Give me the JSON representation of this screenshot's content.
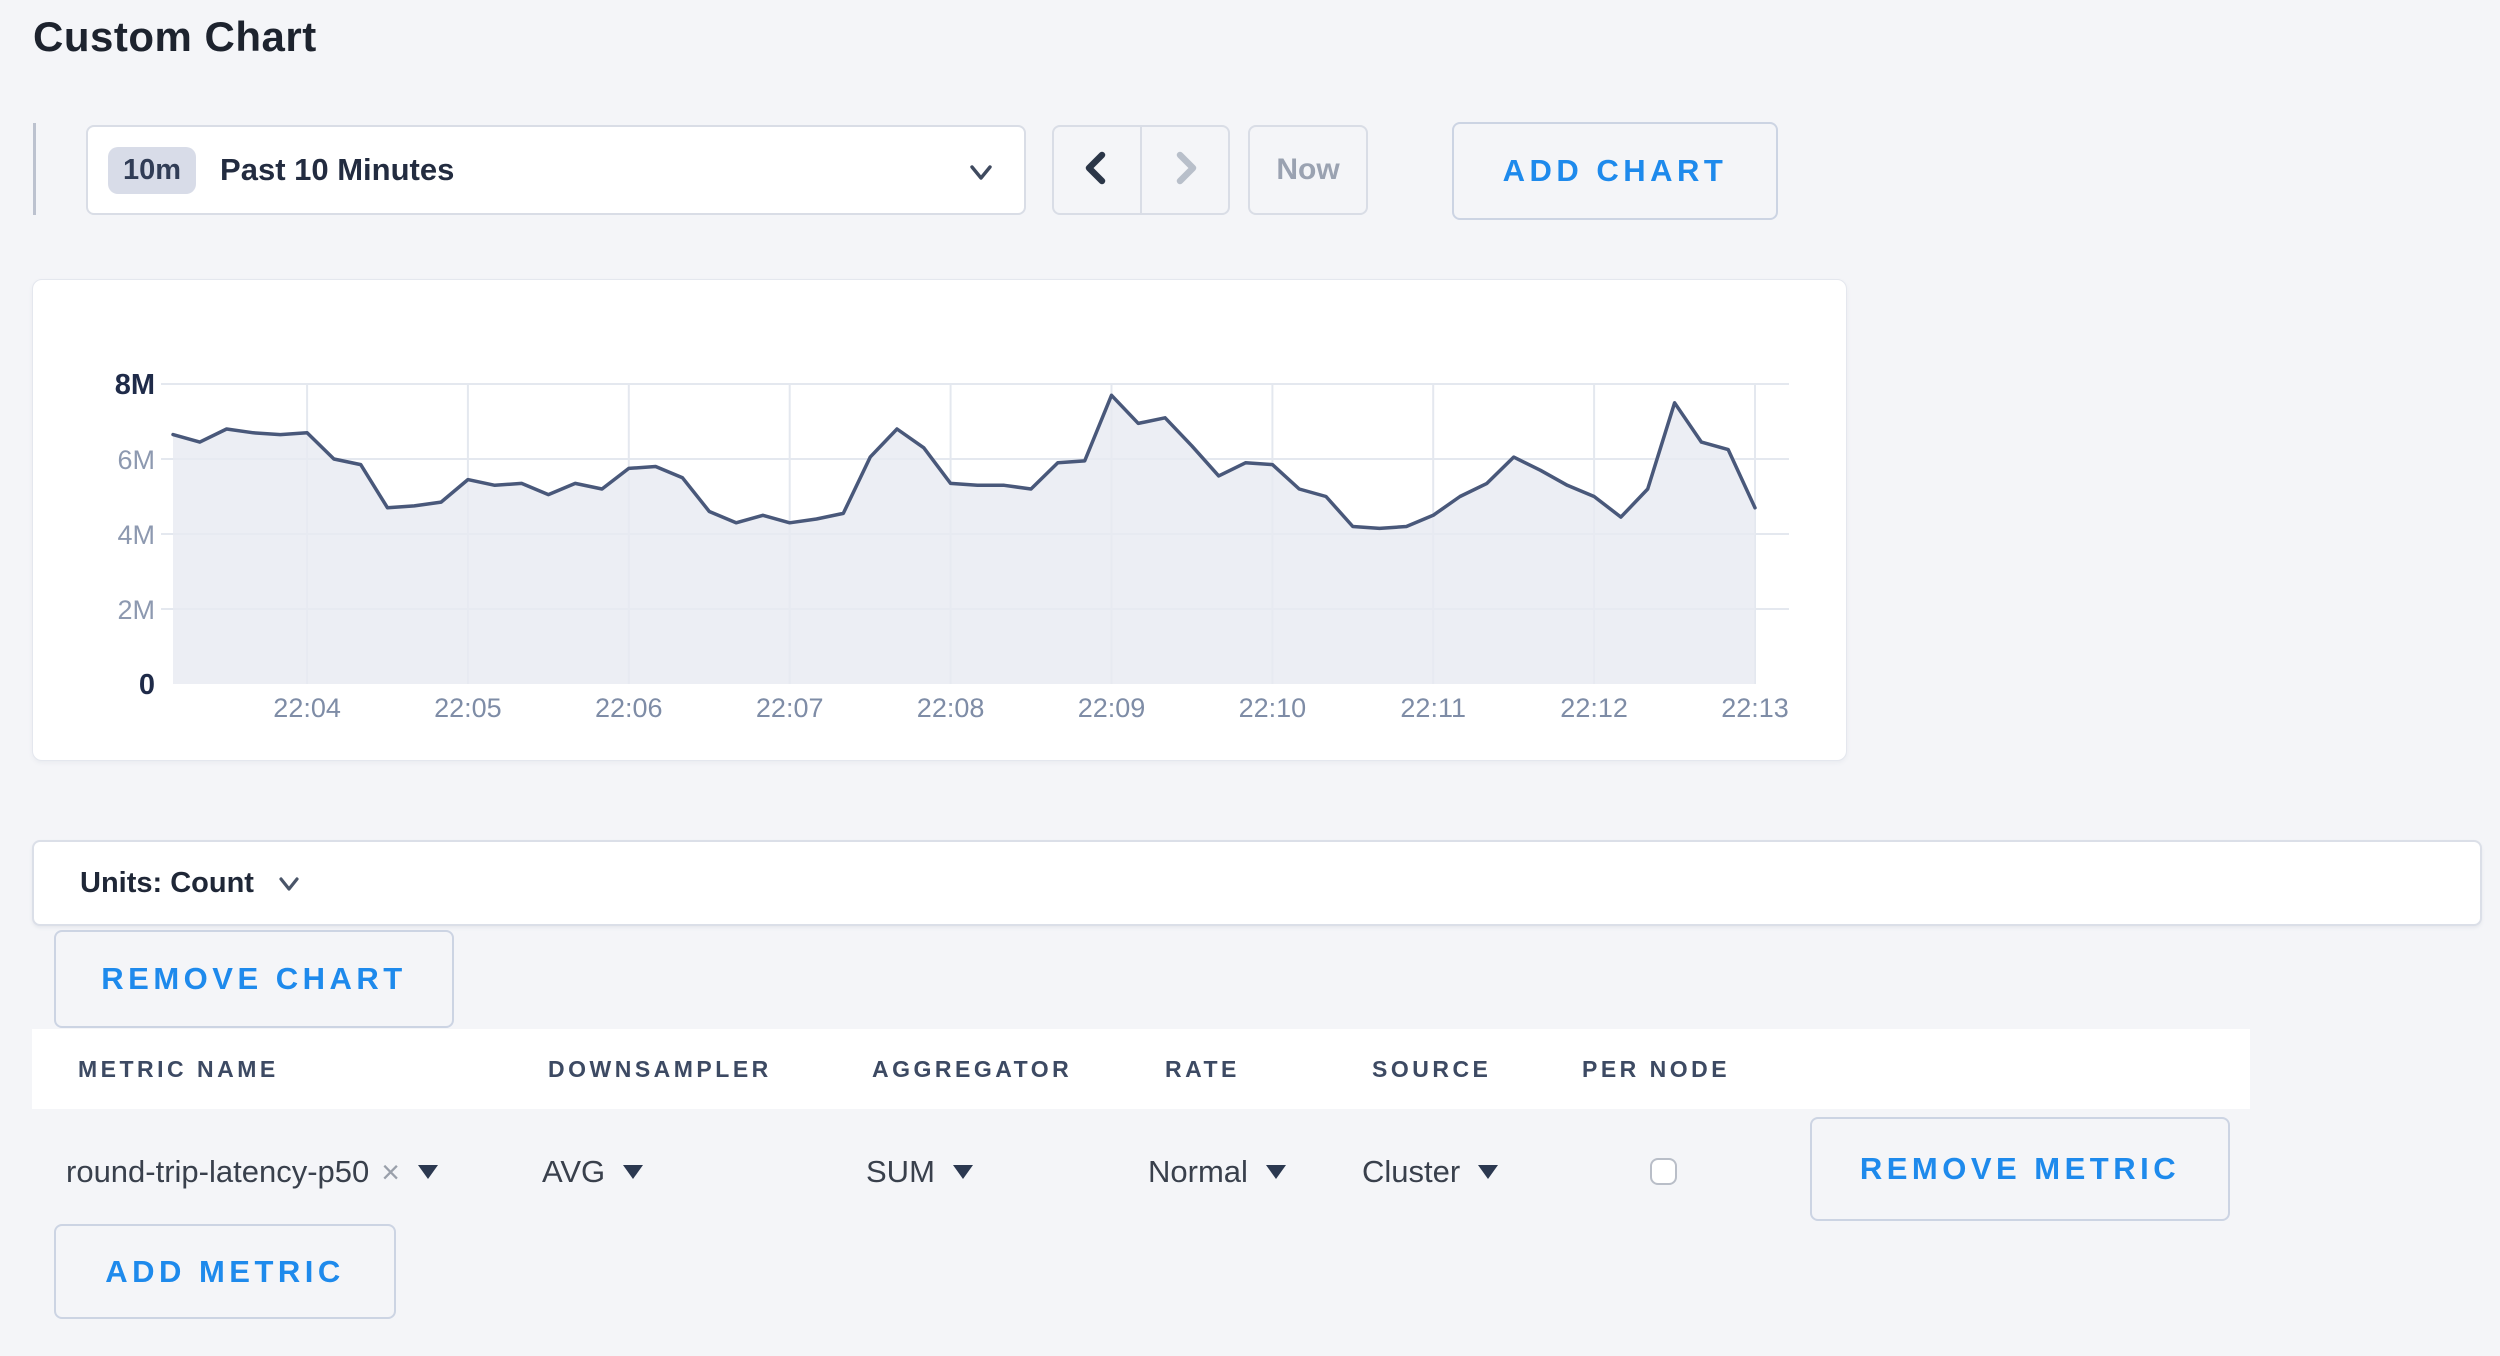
{
  "page": {
    "title": "Custom Chart",
    "background": "#f4f5f8"
  },
  "toolbar": {
    "time_range": {
      "badge": "10m",
      "label": "Past 10 Minutes"
    },
    "now_label": "Now",
    "add_chart_label": "ADD CHART"
  },
  "units_bar": {
    "label": "Units: Count"
  },
  "chart_actions": {
    "remove_chart_label": "REMOVE CHART"
  },
  "metrics_table": {
    "columns": [
      "METRIC NAME",
      "DOWNSAMPLER",
      "AGGREGATOR",
      "RATE",
      "SOURCE",
      "PER NODE"
    ],
    "row": {
      "metric_name": "round-trip-latency-p50",
      "remove_tag": "×",
      "downsampler": "AVG",
      "aggregator": "SUM",
      "rate": "Normal",
      "source": "Cluster",
      "per_node_checked": false
    },
    "remove_metric_label": "REMOVE METRIC",
    "add_metric_label": "ADD METRIC"
  },
  "chart_data": {
    "type": "area",
    "series_name": "round-trip-latency-p50",
    "units": "Count",
    "y_ticks": [
      "0",
      "2M",
      "4M",
      "6M",
      "8M"
    ],
    "y_max_millions": 8,
    "x_ticks": [
      "22:04",
      "22:05",
      "22:06",
      "22:07",
      "22:08",
      "22:09",
      "22:10",
      "22:11",
      "22:12",
      "22:13"
    ],
    "start_time": "22:03:10",
    "interval_seconds": 10,
    "values_unit": "millions",
    "values_millions": [
      6.65,
      6.45,
      6.8,
      6.7,
      6.65,
      6.7,
      6.0,
      5.85,
      4.7,
      4.75,
      4.85,
      5.45,
      5.3,
      5.35,
      5.05,
      5.35,
      5.2,
      5.75,
      5.8,
      5.5,
      4.6,
      4.3,
      4.5,
      4.3,
      4.4,
      4.55,
      6.05,
      6.8,
      6.3,
      5.35,
      5.3,
      5.3,
      5.2,
      5.9,
      5.95,
      7.7,
      6.95,
      7.1,
      6.35,
      5.55,
      5.9,
      5.85,
      5.2,
      5.0,
      4.2,
      4.15,
      4.2,
      4.5,
      5.0,
      5.35,
      6.05,
      5.7,
      5.3,
      5.0,
      4.45,
      5.2,
      7.5,
      6.45,
      6.25,
      4.7
    ],
    "grid": true,
    "legend": "none",
    "colors": {
      "line": "#49587a",
      "fill": "rgba(231,234,241,0.8)",
      "grid": "#e4e8ef",
      "tick_strong": "#1f2b49",
      "tick_muted": "#8d99b0",
      "tick_x": "#7e8ca6"
    }
  },
  "colors": {
    "accent_blue": "#1e8aec",
    "page_bg": "#f4f5f8",
    "panel_border": "#e4e7ee",
    "control_border": "#d9dde6"
  }
}
